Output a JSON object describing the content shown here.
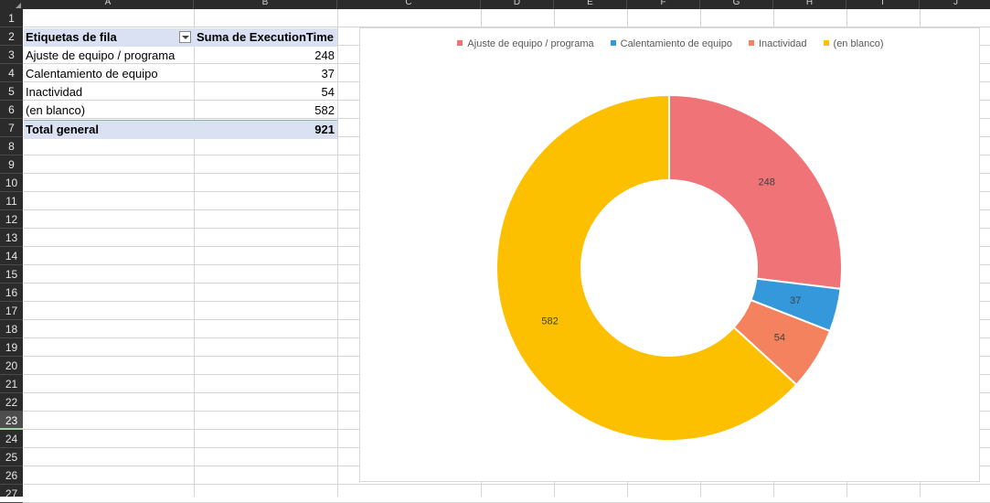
{
  "sheet": {
    "columns": [
      "A",
      "B",
      "C",
      "D",
      "E",
      "F",
      "G",
      "H",
      "I",
      "J"
    ],
    "rows": [
      "1",
      "2",
      "3",
      "4",
      "5",
      "6",
      "7",
      "8",
      "9",
      "10",
      "11",
      "12",
      "13",
      "14",
      "15",
      "16",
      "17",
      "18",
      "19",
      "20",
      "21",
      "22",
      "23",
      "24",
      "25",
      "26",
      "27"
    ],
    "active_row": "23"
  },
  "pivot": {
    "header": {
      "label": "Etiquetas de fila",
      "value": "Suma de ExecutionTime"
    },
    "rows": [
      {
        "label": "Ajuste de equipo / programa",
        "value": "248"
      },
      {
        "label": "Calentamiento de equipo",
        "value": "37"
      },
      {
        "label": "Inactividad",
        "value": "54"
      },
      {
        "label": "(en blanco)",
        "value": "582"
      }
    ],
    "total": {
      "label": "Total general",
      "value": "921"
    }
  },
  "chart_data": {
    "type": "pie",
    "variant": "doughnut",
    "categories": [
      "Ajuste de equipo / programa",
      "Calentamiento de equipo",
      "Inactividad",
      "(en blanco)"
    ],
    "values": [
      248,
      37,
      54,
      582
    ],
    "colors": [
      "#f07378",
      "#3498db",
      "#f4825e",
      "#fdc000"
    ],
    "data_labels": [
      "248",
      "37",
      "54",
      "582"
    ],
    "legend": "top",
    "title": ""
  }
}
